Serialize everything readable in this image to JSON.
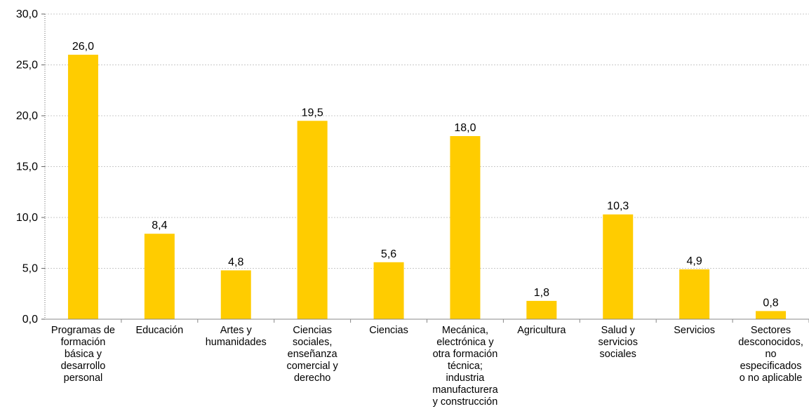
{
  "chart_data": {
    "type": "bar",
    "title": "",
    "xlabel": "",
    "ylabel": "",
    "ylim": [
      0,
      30
    ],
    "yticks": [
      "0,0",
      "5,0",
      "10,0",
      "15,0",
      "20,0",
      "25,0",
      "30,0"
    ],
    "grid": "horizontal dashed",
    "legend": "none",
    "bar_color": "#FFCC00",
    "categories": [
      "Programas de formación básica y desarrollo personal",
      "Educación",
      "Artes y humanidades",
      "Ciencias sociales, enseñanza comercial y derecho",
      "Ciencias",
      "Mecánica, electrónica y otra formación técnica; industria manufacturera y construcción",
      "Agricultura",
      "Salud y servicios sociales",
      "Servicios",
      "Sectores desconocidos, no especificados o no aplicable"
    ],
    "category_lines": [
      [
        "Programas de",
        "formación",
        "básica y",
        "desarrollo",
        "personal"
      ],
      [
        "Educación"
      ],
      [
        "Artes y",
        "humanidades"
      ],
      [
        "Ciencias",
        "sociales,",
        "enseñanza",
        "comercial y",
        "derecho"
      ],
      [
        "Ciencias"
      ],
      [
        "Mecánica,",
        "electrónica y",
        "otra formación",
        "técnica;",
        "industria",
        "manufacturera",
        "y construcción"
      ],
      [
        "Agricultura"
      ],
      [
        "Salud y",
        "servicios",
        "sociales"
      ],
      [
        "Servicios"
      ],
      [
        "Sectores",
        "desconocidos,",
        "no",
        "especificados",
        "o no aplicable"
      ]
    ],
    "values": [
      26.0,
      8.4,
      4.8,
      19.5,
      5.6,
      18.0,
      1.8,
      10.3,
      4.9,
      0.8
    ],
    "value_labels": [
      "26,0",
      "8,4",
      "4,8",
      "19,5",
      "5,6",
      "18,0",
      "1,8",
      "10,3",
      "4,9",
      "0,8"
    ]
  }
}
